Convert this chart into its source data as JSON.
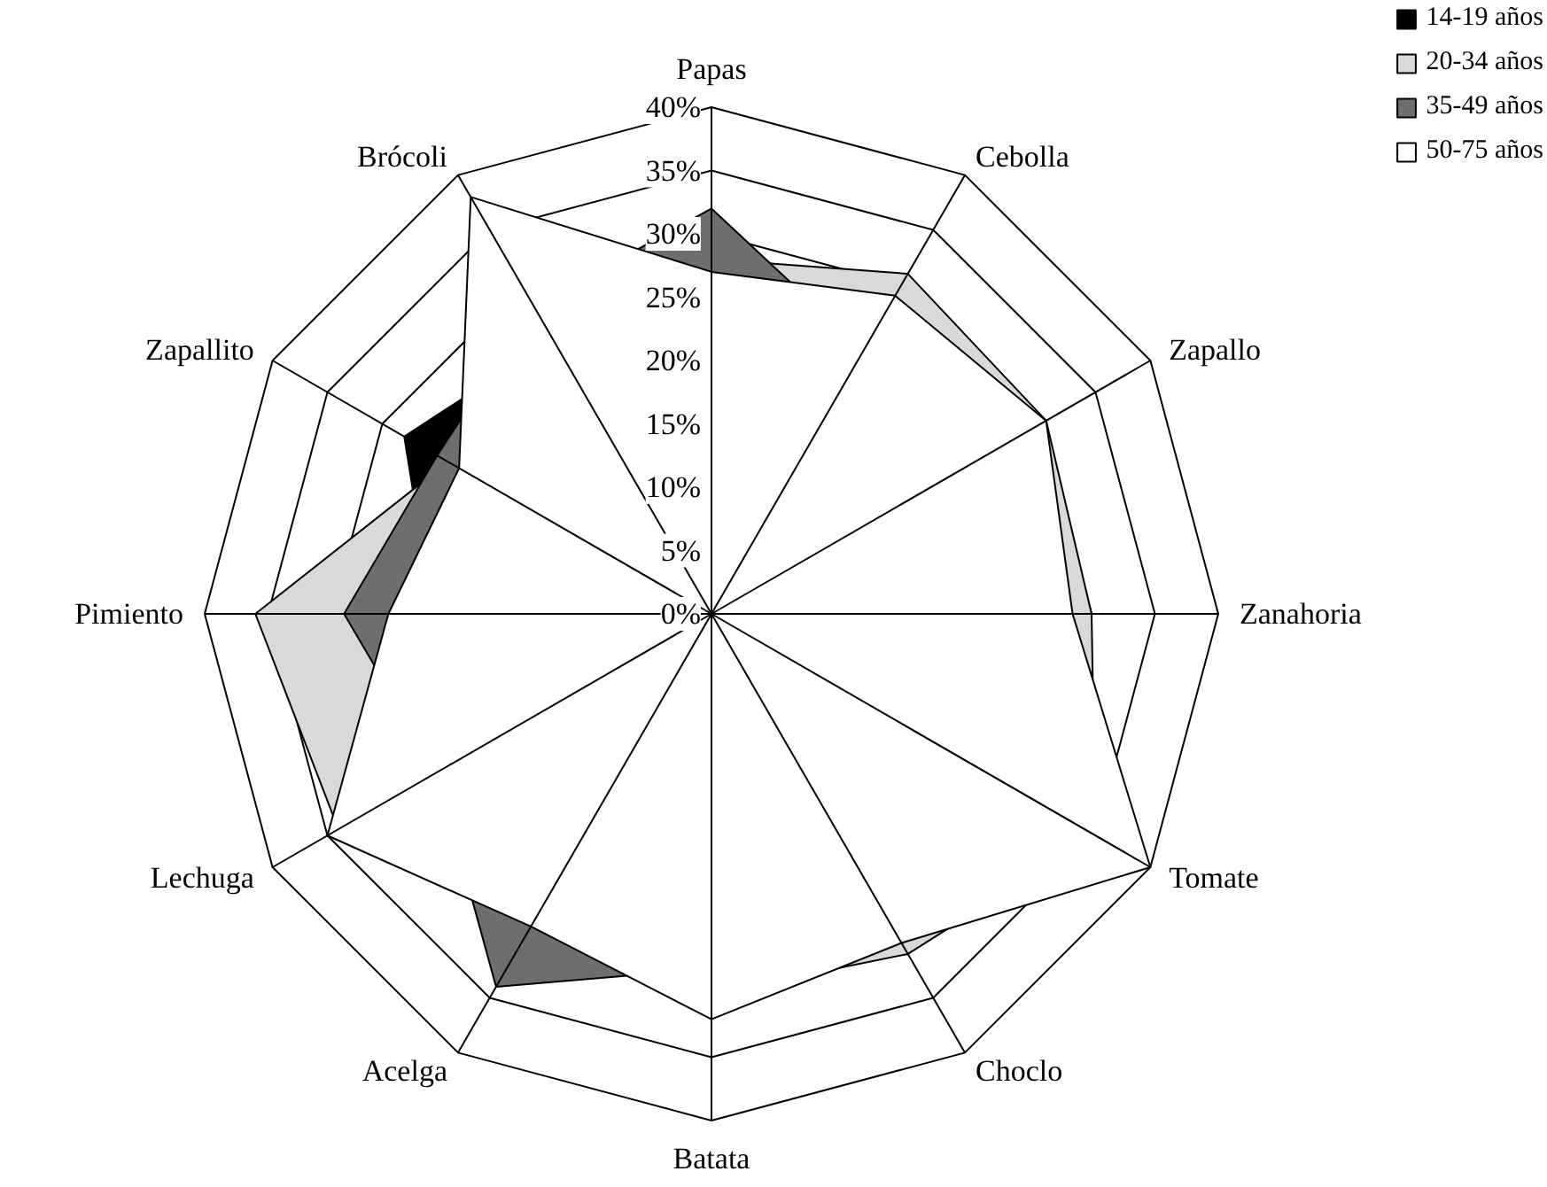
{
  "chart_data": {
    "type": "radar",
    "categories": [
      "Papas",
      "Cebolla",
      "Zapallo",
      "Zanahoria",
      "Tomate",
      "Choclo",
      "Batata",
      "Acelga",
      "Lechuga",
      "Pimiento",
      "Zapallito",
      "Brócoli"
    ],
    "series": [
      {
        "name": "14-19 años",
        "color": "#000000",
        "values": [
          20,
          20,
          20,
          20,
          25,
          20,
          20,
          20,
          25,
          22,
          28,
          25
        ]
      },
      {
        "name": "20-34 años",
        "color": "#d9d9d9",
        "values": [
          28,
          31,
          30.5,
          30,
          35,
          31,
          30,
          28,
          34,
          36,
          24,
          30
        ]
      },
      {
        "name": "35-49 años",
        "color": "#6e6e6e",
        "values": [
          32,
          24,
          20,
          20,
          25,
          20,
          28,
          34,
          25,
          29,
          25,
          28
        ]
      },
      {
        "name": "50-75 años",
        "color": "#ffffff",
        "values": [
          27,
          29,
          30.5,
          28.5,
          40,
          30,
          32,
          28.5,
          35,
          25.5,
          23,
          38
        ]
      }
    ],
    "ylim": [
      0,
      40
    ],
    "yticks": [
      {
        "value": 0,
        "label": "0%"
      },
      {
        "value": 5,
        "label": "5%"
      },
      {
        "value": 10,
        "label": "10%"
      },
      {
        "value": 15,
        "label": "15%"
      },
      {
        "value": 20,
        "label": "20%"
      },
      {
        "value": 25,
        "label": "25%"
      },
      {
        "value": 30,
        "label": "30%"
      },
      {
        "value": 35,
        "label": "35%"
      },
      {
        "value": 40,
        "label": "40%"
      }
    ],
    "legend": "top right"
  }
}
